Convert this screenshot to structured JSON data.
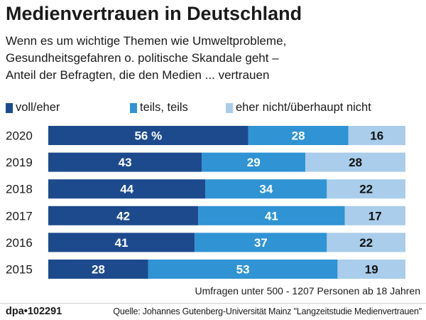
{
  "header": {
    "title": "Medienvertrauen in Deutschland",
    "subtitle_lines": [
      "Wenn es um wichtige Themen wie Umweltprobleme,",
      "Gesundheitsgefahren o. politische Skandale geht –",
      "Anteil der Befragten, die den Medien ... vertrauen"
    ]
  },
  "legend": [
    {
      "label": "voll/eher",
      "color": "#1d4a8c"
    },
    {
      "label": "teils, teils",
      "color": "#2f93d4"
    },
    {
      "label": "eher nicht/überhaupt nicht",
      "color": "#a9cdea"
    }
  ],
  "chart_data": {
    "type": "bar",
    "orientation": "horizontal",
    "stacked": true,
    "categories": [
      "2020",
      "2019",
      "2018",
      "2017",
      "2016",
      "2015"
    ],
    "series": [
      {
        "name": "voll/eher",
        "values": [
          56,
          43,
          44,
          42,
          41,
          28
        ],
        "labels": [
          "56 %",
          "43",
          "44",
          "42",
          "41",
          "28"
        ]
      },
      {
        "name": "teils, teils",
        "values": [
          28,
          29,
          34,
          41,
          37,
          53
        ],
        "labels": [
          "28",
          "29",
          "34",
          "41",
          "37",
          "53"
        ]
      },
      {
        "name": "eher nicht/überhaupt nicht",
        "values": [
          16,
          28,
          22,
          17,
          22,
          19
        ],
        "labels": [
          "16",
          "28",
          "22",
          "17",
          "22",
          "19"
        ]
      }
    ],
    "xlim": [
      0,
      100
    ],
    "grid": false,
    "legend_position": "top"
  },
  "footnote": "Umfragen unter 500 - 1207 Personen ab 18 Jahren",
  "footer": {
    "agency": "dpa•102291",
    "source": "Quelle: Johannes Gutenberg-Universität Mainz \"Langzeitstudie Medienvertrauen\""
  }
}
